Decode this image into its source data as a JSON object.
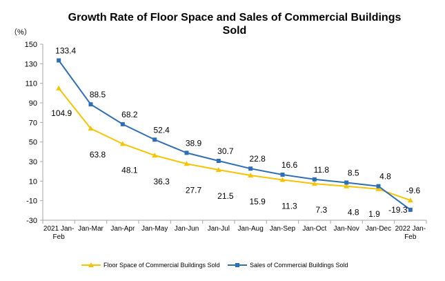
{
  "chart_data": {
    "type": "line",
    "title_lines": [
      "Growth Rate of Floor Space and Sales of Commercial Buildings",
      "Sold"
    ],
    "unit_label": "（%）",
    "ylim": [
      -30,
      150
    ],
    "yticks": [
      150,
      130,
      110,
      90,
      70,
      50,
      30,
      10,
      -10,
      -30
    ],
    "categories": [
      [
        "2021 Jan-",
        "Feb"
      ],
      [
        "Jan-Mar"
      ],
      [
        "Jan-Apr"
      ],
      [
        "Jan-May"
      ],
      [
        "Jan-Jun"
      ],
      [
        "Jan-Jul"
      ],
      [
        "Jan-Aug"
      ],
      [
        "Jan-Sep"
      ],
      [
        "Jan-Oct"
      ],
      [
        "Jan-Nov"
      ],
      [
        "Jan-Dec"
      ],
      [
        "2022 Jan-",
        "Feb"
      ]
    ],
    "series": [
      {
        "name": "Floor Space of Commercial Buildings Sold",
        "color": "#f5c400",
        "marker": "triangle",
        "values": [
          104.9,
          63.8,
          48.1,
          36.3,
          27.7,
          21.5,
          15.9,
          11.3,
          7.3,
          4.8,
          1.9,
          -9.6
        ]
      },
      {
        "name": "Sales of Commercial Buildings Sold",
        "color": "#2f6db5",
        "marker": "square",
        "values": [
          133.4,
          88.5,
          68.2,
          52.4,
          38.9,
          30.7,
          22.8,
          16.6,
          11.8,
          8.5,
          4.8,
          -19.3
        ]
      }
    ],
    "legend_position": "bottom",
    "grid": false
  }
}
